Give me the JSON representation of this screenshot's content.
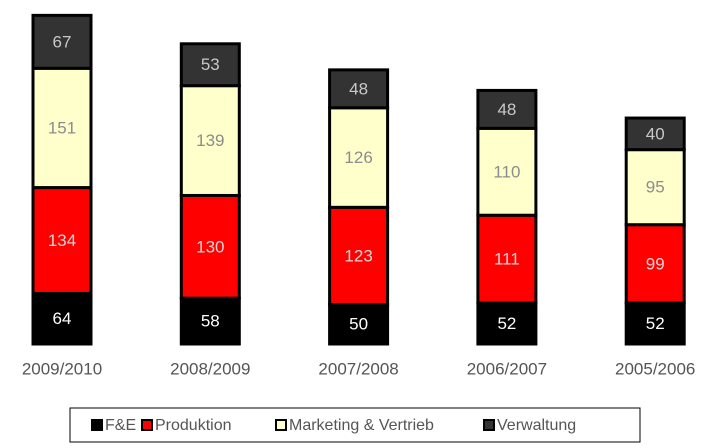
{
  "chart_data": {
    "type": "stacked-bar",
    "categories": [
      "2009/2010",
      "2008/2009",
      "2007/2008",
      "2006/2007",
      "2005/2006"
    ],
    "series": [
      {
        "name": "F&E",
        "color": "#000000",
        "values": [
          64,
          58,
          50,
          52,
          52
        ]
      },
      {
        "name": "Produktion",
        "color": "#ff0000",
        "values": [
          134,
          130,
          123,
          111,
          99
        ]
      },
      {
        "name": "Marketing & Vertrieb",
        "color": "#ffffcc",
        "values": [
          151,
          139,
          126,
          110,
          95
        ]
      },
      {
        "name": "Verwaltung",
        "color": "#333333",
        "values": [
          67,
          53,
          48,
          48,
          40
        ]
      }
    ]
  }
}
